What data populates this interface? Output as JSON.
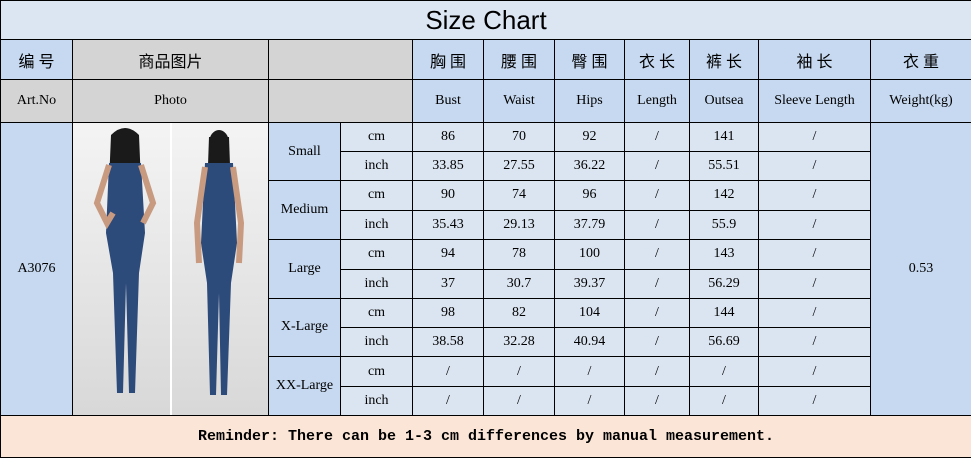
{
  "title": "Size Chart",
  "header_cn": {
    "no": "编 号",
    "photo": "商品图片",
    "cols": [
      "胸 围",
      "腰 围",
      "臀 围",
      "衣 长",
      "裤 长",
      "袖 长",
      "衣 重"
    ]
  },
  "header_en": {
    "no": "Art.No",
    "photo": "Photo",
    "cols": [
      "Bust",
      "Waist",
      "Hips",
      "Length",
      "Outsea",
      "Sleeve Length",
      "Weight(kg)"
    ]
  },
  "art_no": "A3076",
  "weight": 0.53,
  "sizes": [
    {
      "name": "Small",
      "rows": [
        {
          "unit": "cm",
          "values": [
            86,
            70,
            92,
            "/",
            141,
            "/"
          ]
        },
        {
          "unit": "inch",
          "values": [
            33.85,
            27.55,
            36.22,
            "/",
            55.51,
            "/"
          ]
        }
      ]
    },
    {
      "name": "Medium",
      "rows": [
        {
          "unit": "cm",
          "values": [
            90,
            74,
            96,
            "/",
            142,
            "/"
          ]
        },
        {
          "unit": "inch",
          "values": [
            35.43,
            29.13,
            37.79,
            "/",
            55.9,
            "/"
          ]
        }
      ]
    },
    {
      "name": "Large",
      "rows": [
        {
          "unit": "cm",
          "values": [
            94,
            78,
            100,
            "/",
            143,
            "/"
          ]
        },
        {
          "unit": "inch",
          "values": [
            37,
            30.7,
            39.37,
            "/",
            56.29,
            "/"
          ]
        }
      ]
    },
    {
      "name": "X-Large",
      "rows": [
        {
          "unit": "cm",
          "values": [
            98,
            82,
            104,
            "/",
            144,
            "/"
          ]
        },
        {
          "unit": "inch",
          "values": [
            38.58,
            32.28,
            40.94,
            "/",
            56.69,
            "/"
          ]
        }
      ]
    },
    {
      "name": "XX-Large",
      "rows": [
        {
          "unit": "cm",
          "values": [
            "/",
            "/",
            "/",
            "/",
            "/",
            "/"
          ]
        },
        {
          "unit": "inch",
          "values": [
            "/",
            "/",
            "/",
            "/",
            "/",
            "/"
          ]
        }
      ]
    }
  ],
  "footer": "Reminder: There can be 1-3 cm differences by manual measurement."
}
